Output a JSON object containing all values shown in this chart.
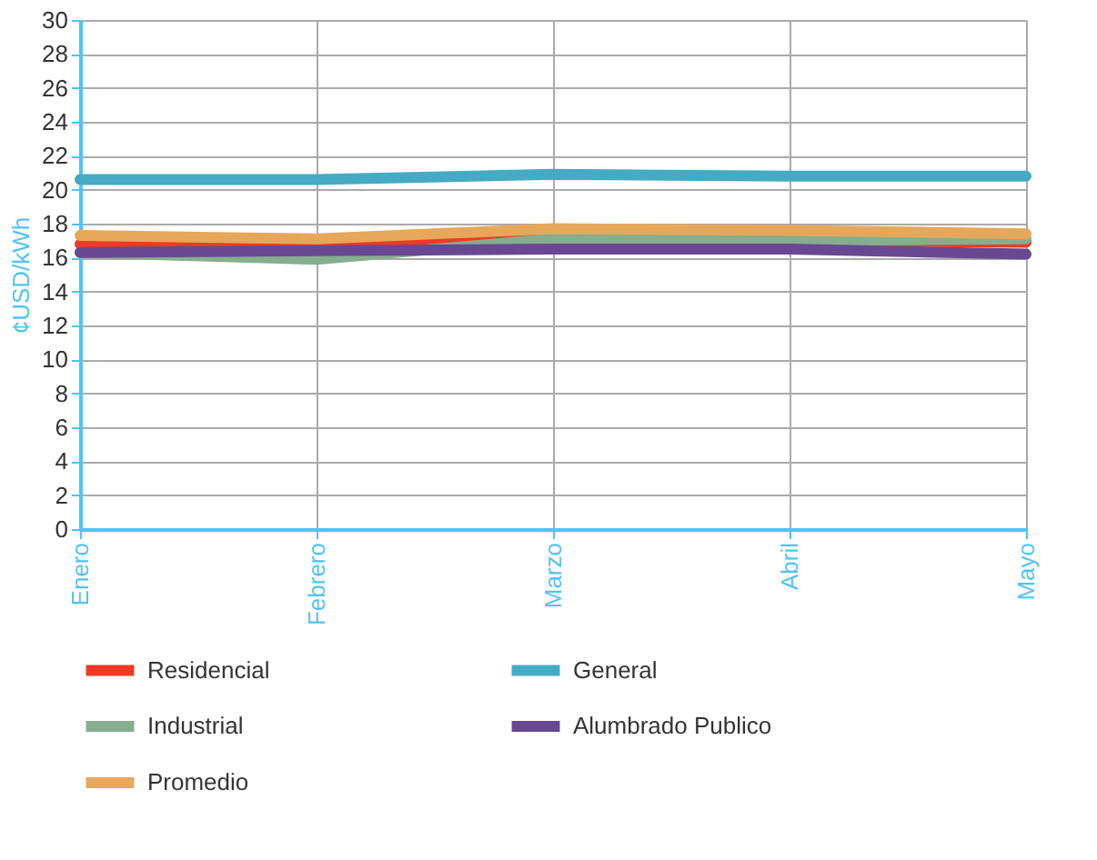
{
  "chart_data": {
    "type": "line",
    "ylabel": "¢USD/kWh",
    "categories": [
      "Enero",
      "Febrero",
      "Marzo",
      "Abril",
      "Mayo"
    ],
    "series": [
      {
        "name": "Residencial",
        "color": "#ee3a24",
        "values": [
          16.8,
          16.7,
          17.2,
          17.0,
          16.9
        ]
      },
      {
        "name": "General",
        "color": "#45aac4",
        "values": [
          20.6,
          20.6,
          20.9,
          20.8,
          20.8
        ]
      },
      {
        "name": "Industrial",
        "color": "#85ae8e",
        "values": [
          16.3,
          15.9,
          17.1,
          17.0,
          17.1
        ]
      },
      {
        "name": "Alumbrado Publico",
        "color": "#6a4891",
        "values": [
          16.3,
          16.4,
          16.5,
          16.5,
          16.2
        ]
      },
      {
        "name": "Promedio",
        "color": "#e6a75a",
        "values": [
          17.3,
          17.1,
          17.7,
          17.6,
          17.4
        ]
      }
    ],
    "ylim": [
      0,
      30
    ],
    "yticks": [
      0,
      2,
      4,
      6,
      8,
      10,
      12,
      14,
      16,
      18,
      20,
      22,
      24,
      26,
      28,
      30
    ],
    "grid": true,
    "legend": "bottom",
    "marker": "none",
    "line_style": "solid"
  }
}
